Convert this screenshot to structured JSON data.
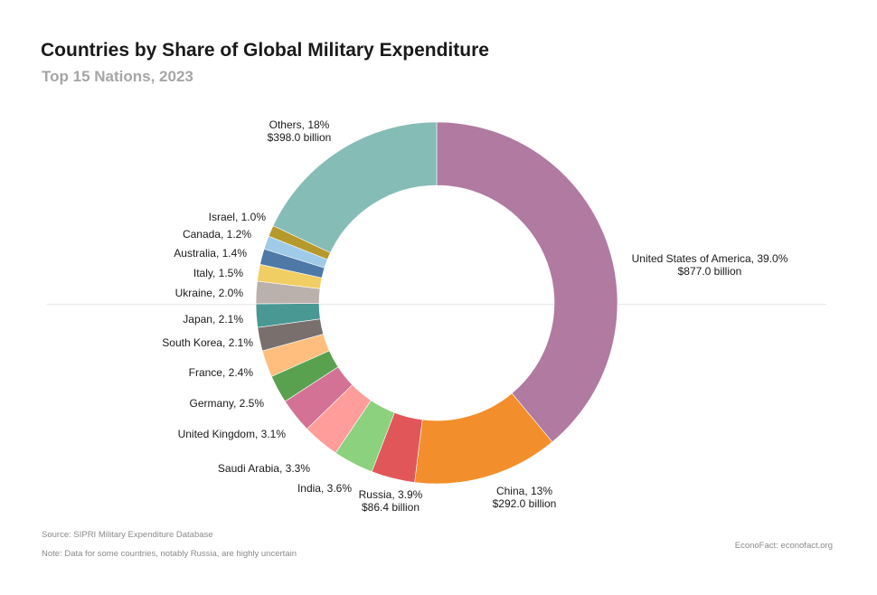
{
  "chart_data": {
    "type": "pie",
    "donut": true,
    "title": "Countries by Share of Global Military Expenditure",
    "subtitle": "Top 15 Nations, 2023",
    "slices": [
      {
        "label": "United States of America, 39.0%",
        "value_label": "$877.0 billion",
        "share": 39.0,
        "color": "#b07aa1"
      },
      {
        "label": "China, 13%",
        "value_label": "$292.0 billion",
        "share": 13.0,
        "color": "#f28e2b"
      },
      {
        "label": "Russia, 3.9%",
        "value_label": "$86.4 billion",
        "share": 3.9,
        "color": "#e15759"
      },
      {
        "label": "India, 3.6%",
        "value_label": "",
        "share": 3.6,
        "color": "#8cd17d"
      },
      {
        "label": "Saudi Arabia, 3.3%",
        "value_label": "",
        "share": 3.3,
        "color": "#ff9d9a"
      },
      {
        "label": "United Kingdom, 3.1%",
        "value_label": "",
        "share": 3.1,
        "color": "#d37295"
      },
      {
        "label": "Germany, 2.5%",
        "value_label": "",
        "share": 2.5,
        "color": "#59a14f"
      },
      {
        "label": "France, 2.4%",
        "value_label": "",
        "share": 2.4,
        "color": "#ffbe7d"
      },
      {
        "label": "South Korea, 2.1%",
        "value_label": "",
        "share": 2.1,
        "color": "#79706e"
      },
      {
        "label": "Japan, 2.1%",
        "value_label": "",
        "share": 2.1,
        "color": "#499894"
      },
      {
        "label": "Ukraine, 2.0%",
        "value_label": "",
        "share": 2.0,
        "color": "#bab0ac"
      },
      {
        "label": "Italy, 1.5%",
        "value_label": "",
        "share": 1.5,
        "color": "#f1ce63"
      },
      {
        "label": "Australia, 1.4%",
        "value_label": "",
        "share": 1.4,
        "color": "#4e79a7"
      },
      {
        "label": "Canada, 1.2%",
        "value_label": "",
        "share": 1.2,
        "color": "#a0cbe8"
      },
      {
        "label": "Israel, 1.0%",
        "value_label": "",
        "share": 1.0,
        "color": "#b6992d"
      },
      {
        "label": "Others, 18%",
        "value_label": "$398.0 billion",
        "share": 18.0,
        "color": "#86bcb6"
      }
    ]
  },
  "footer": {
    "source": "Source: SIPRI Military Expenditure Database",
    "note": "Note: Data for some countries, notably Russia, are highly uncertain",
    "credit": "EconoFact: econofact.org"
  }
}
